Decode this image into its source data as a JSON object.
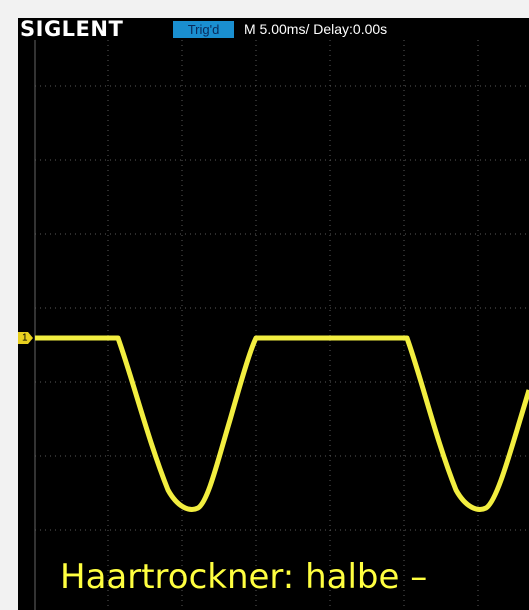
{
  "header": {
    "brand": "SIGLENT",
    "trigger_status": "Trig'd",
    "timebase": "M 5.00ms/ Delay:0.00s"
  },
  "channel_marker": "1",
  "caption": "Haartrockner: halbe –"
}
